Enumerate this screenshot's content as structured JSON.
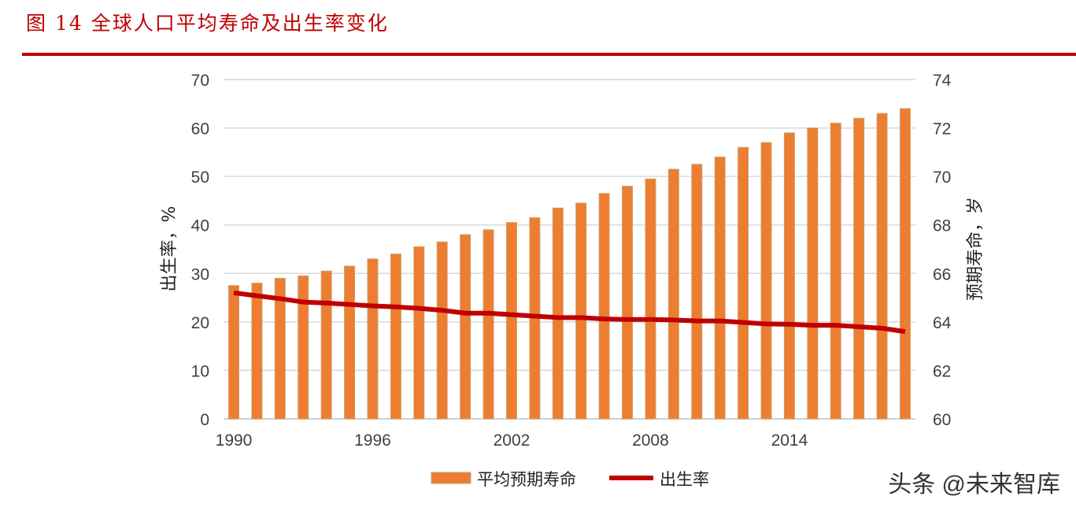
{
  "title": "图 14 全球人口平均寿命及出生率变化",
  "watermark": "头条 @未来智库",
  "chart_data": {
    "type": "bar+line",
    "title": "图 14 全球人口平均寿命及出生率变化",
    "x": [
      1990,
      1991,
      1992,
      1993,
      1994,
      1995,
      1996,
      1997,
      1998,
      1999,
      2000,
      2001,
      2002,
      2003,
      2004,
      2005,
      2006,
      2007,
      2008,
      2009,
      2010,
      2011,
      2012,
      2013,
      2014,
      2015,
      2016,
      2017,
      2018,
      2019
    ],
    "x_tick_labels": [
      "1990",
      "1996",
      "2002",
      "2008",
      "2014"
    ],
    "y_left": {
      "label": "出生率，%",
      "range": [
        0,
        70
      ],
      "ticks": [
        0,
        10,
        20,
        30,
        40,
        50,
        60,
        70
      ]
    },
    "y_right": {
      "label": "预期寿命，岁",
      "range": [
        60,
        74
      ],
      "ticks": [
        60,
        62,
        64,
        66,
        68,
        70,
        72,
        74
      ]
    },
    "grid": true,
    "legend_position": "bottom",
    "series": [
      {
        "name": "平均预期寿命",
        "type": "bar",
        "axis": "right",
        "color": "#ed7d31",
        "values": [
          65.5,
          65.6,
          65.8,
          65.9,
          66.1,
          66.3,
          66.6,
          66.8,
          67.1,
          67.3,
          67.6,
          67.8,
          68.1,
          68.3,
          68.7,
          68.9,
          69.3,
          69.6,
          69.9,
          70.3,
          70.5,
          70.8,
          71.2,
          71.4,
          71.8,
          72.0,
          72.2,
          72.4,
          72.6,
          72.8
        ]
      },
      {
        "name": "出生率",
        "type": "line",
        "axis": "left",
        "color": "#c00000",
        "values": [
          26.0,
          25.4,
          24.8,
          24.1,
          23.9,
          23.6,
          23.3,
          23.1,
          22.8,
          22.4,
          21.8,
          21.8,
          21.5,
          21.2,
          20.9,
          20.9,
          20.6,
          20.5,
          20.5,
          20.4,
          20.2,
          20.2,
          19.9,
          19.6,
          19.5,
          19.3,
          19.3,
          19.0,
          18.7,
          18.0
        ]
      }
    ]
  }
}
